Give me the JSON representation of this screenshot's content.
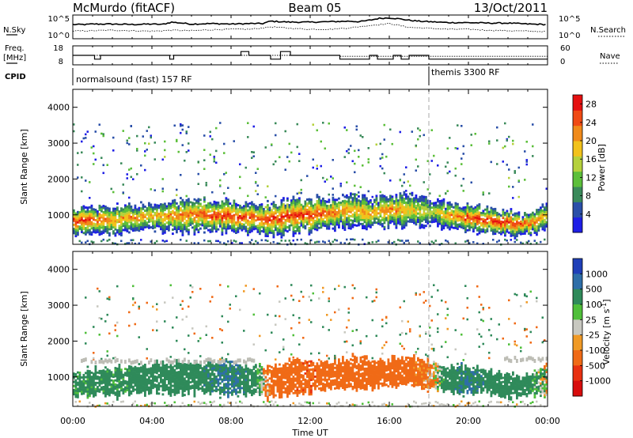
{
  "header": {
    "station": "McMurdo (fitACF)",
    "beam": "Beam 05",
    "date": "13/Oct/2011"
  },
  "noise_panel": {
    "left_label": "N.Sky",
    "right_label": "N.Search",
    "left_ticks": [
      "10^5",
      "10^0"
    ],
    "right_ticks": [
      "10^5",
      "10^0"
    ]
  },
  "freq_panel": {
    "left_label_line1": "Freq.",
    "left_label_line2": "[MHz]",
    "right_label": "Nave",
    "left_ticks": [
      "18",
      "8"
    ],
    "right_ticks": [
      "60",
      "0"
    ]
  },
  "cpid_panel": {
    "label": "CPID",
    "programs": [
      {
        "name": "normalsound (fast) 157 RF",
        "start_hour": 0
      },
      {
        "name": "themis 3300 RF",
        "start_hour": 18
      }
    ]
  },
  "time_axis": {
    "ticks": [
      "00:00",
      "04:00",
      "08:00",
      "12:00",
      "16:00",
      "20:00",
      "00:00"
    ],
    "label": "Time UT"
  },
  "colors": {
    "power_scale": [
      "#1e1ee6",
      "#2a4fa8",
      "#3a8a5a",
      "#5cbf3a",
      "#b5d13c",
      "#f2c21b",
      "#f08a1a",
      "#f04a14",
      "#e51010"
    ],
    "velocity_scale": [
      "#1f3fb8",
      "#2e6ea8",
      "#2f8a5a",
      "#4fbf3a",
      "#c8c8c0",
      "#f09a26",
      "#f06a16",
      "#e83010",
      "#d80c0c"
    ],
    "ground_scatter": "#bdbdb5"
  },
  "chart_data": [
    {
      "type": "line",
      "title": "McMurdo (fitACF) Beam 05 13/Oct/2011",
      "panel": "noise",
      "x_unit": "hours UT",
      "xlim": [
        0,
        24
      ],
      "ylim": [
        0,
        5
      ],
      "y_scale": "log10",
      "series": [
        {
          "name": "N.Sky",
          "x": [
            0,
            0.7,
            1,
            2,
            3,
            4,
            4.5,
            5,
            6,
            7,
            8,
            9,
            9.6,
            10,
            10.5,
            11,
            12,
            13,
            14,
            14.5,
            15,
            15.5,
            16,
            16.5,
            17,
            17.5,
            18,
            19,
            20,
            21,
            22,
            23,
            24
          ],
          "y": [
            3.0,
            3.0,
            3.1,
            3.1,
            3.0,
            3.1,
            3.0,
            3.5,
            3.1,
            3.2,
            3.1,
            3.2,
            3.2,
            3.7,
            3.6,
            3.5,
            3.5,
            3.6,
            3.7,
            3.6,
            3.9,
            4.3,
            4.4,
            4.2,
            3.9,
            3.7,
            3.6,
            3.4,
            3.4,
            3.3,
            3.3,
            3.1,
            3.0
          ]
        },
        {
          "name": "N.Search",
          "x": [
            0,
            1,
            2,
            3,
            4,
            5,
            6,
            7,
            8,
            9,
            10,
            11,
            12,
            13,
            14,
            15,
            16,
            17,
            18,
            19,
            20,
            21,
            22,
            23,
            24
          ],
          "y": [
            1.6,
            1.7,
            1.8,
            1.7,
            1.6,
            1.8,
            1.7,
            1.9,
            2.0,
            2.0,
            2.5,
            2.2,
            2.0,
            2.0,
            2.3,
            2.8,
            3.2,
            2.4,
            2.2,
            2.0,
            2.0,
            1.8,
            1.7,
            1.6,
            1.5
          ]
        }
      ]
    },
    {
      "type": "line",
      "panel": "frequency",
      "xlim": [
        0,
        24
      ],
      "ylim": [
        8,
        18
      ],
      "series": [
        {
          "name": "Freq.",
          "x": [
            0,
            1.1,
            1.1,
            1.4,
            1.4,
            4.9,
            4.9,
            5.1,
            5.1,
            8.5,
            8.5,
            8.9,
            8.9,
            10.0,
            10.0,
            10.5,
            10.5,
            11.0,
            11.0,
            11.5,
            11.5,
            13.5,
            13.5,
            15.0,
            15.0,
            15.4,
            15.4,
            16.2,
            16.2,
            16.6,
            16.6,
            17.0,
            17.0,
            18.0,
            18.0,
            24.0
          ],
          "y": [
            13,
            13,
            11,
            11,
            13,
            13,
            11,
            11,
            13,
            13,
            15,
            15,
            13,
            13,
            11,
            11,
            15,
            15,
            13,
            13,
            13,
            13,
            11,
            11,
            13,
            13,
            11,
            11,
            13,
            13,
            11,
            11,
            13,
            13,
            11,
            11
          ]
        },
        {
          "name": "Nave",
          "x": [
            0,
            13.5,
            13.5,
            24
          ],
          "y": [
            13,
            13,
            12.5,
            12.5
          ]
        }
      ]
    },
    {
      "type": "heatmap",
      "panel": "power",
      "xlim": [
        0,
        24
      ],
      "ylim": [
        180,
        4500
      ],
      "ylabel": "Slant Range [km]",
      "xlabel": "Time UT",
      "colorbar": {
        "label": "Power [dB]",
        "ticks": [
          4,
          8,
          12,
          16,
          20,
          24,
          28
        ],
        "range": [
          0,
          30
        ]
      },
      "ionospheric_band": {
        "x": [
          0,
          1,
          2,
          3,
          4,
          5,
          6,
          7,
          8,
          9,
          10,
          11,
          12,
          13,
          14,
          15,
          16,
          17,
          18,
          19,
          20,
          21,
          22,
          23,
          24
        ],
        "center_km": [
          850,
          900,
          900,
          950,
          1000,
          1000,
          1050,
          1000,
          1000,
          950,
          900,
          1000,
          1050,
          1100,
          1150,
          1100,
          1150,
          1200,
          1100,
          1000,
          950,
          900,
          800,
          800,
          1000
        ],
        "half_width_km": [
          300,
          350,
          350,
          350,
          350,
          400,
          400,
          400,
          400,
          350,
          400,
          450,
          400,
          350,
          400,
          350,
          400,
          400,
          350,
          300,
          350,
          300,
          300,
          250,
          400
        ],
        "peak_power_db": [
          28,
          26,
          22,
          22,
          20,
          24,
          24,
          26,
          28,
          26,
          28,
          28,
          28,
          24,
          22,
          22,
          24,
          20,
          16,
          22,
          26,
          28,
          28,
          26,
          20
        ]
      },
      "high_range_patches": [
        {
          "x_start": 2.0,
          "x_end": 5.0,
          "range_km": [
            2800,
            3500
          ],
          "power_db": 4
        },
        {
          "x_start": 5.0,
          "x_end": 9.5,
          "range_km": [
            2700,
            3300
          ],
          "power_db": 8
        },
        {
          "x_start": 10.0,
          "x_end": 17.5,
          "range_km": [
            2000,
            3600
          ],
          "power_db": 6
        },
        {
          "x_start": 20.5,
          "x_end": 23.5,
          "range_km": [
            1600,
            3500
          ],
          "power_db": 6
        }
      ]
    },
    {
      "type": "heatmap",
      "panel": "velocity",
      "xlim": [
        0,
        24
      ],
      "ylim": [
        180,
        4500
      ],
      "ylabel": "Slant Range [km]",
      "xlabel": "Time UT",
      "colorbar": {
        "label": "Velocity [m s^-1]",
        "ticks": [
          "1000",
          "500",
          "100",
          "25",
          "-25",
          "-100",
          "-500",
          "-1000"
        ]
      },
      "ionospheric_band": {
        "x": [
          0,
          1,
          2,
          3,
          4,
          5,
          6,
          7,
          8,
          9,
          10,
          11,
          12,
          13,
          14,
          15,
          16,
          17,
          18,
          19,
          20,
          21,
          22,
          23,
          24
        ],
        "center_km": [
          850,
          900,
          900,
          950,
          1000,
          1000,
          1050,
          1000,
          1000,
          950,
          900,
          1000,
          1050,
          1100,
          1150,
          1100,
          1150,
          1200,
          1100,
          1000,
          950,
          900,
          800,
          800,
          1000
        ],
        "half_width_km": [
          300,
          350,
          350,
          350,
          350,
          400,
          400,
          400,
          400,
          350,
          400,
          450,
          400,
          350,
          400,
          350,
          400,
          400,
          350,
          300,
          350,
          300,
          300,
          250,
          400
        ],
        "velocity_ms": [
          100,
          150,
          120,
          150,
          200,
          180,
          200,
          250,
          300,
          200,
          -150,
          -200,
          -250,
          -150,
          -200,
          -150,
          -200,
          -150,
          -100,
          200,
          300,
          200,
          150,
          150,
          -30
        ]
      },
      "ground_scatter_km": [
        1600,
        1700
      ]
    }
  ]
}
